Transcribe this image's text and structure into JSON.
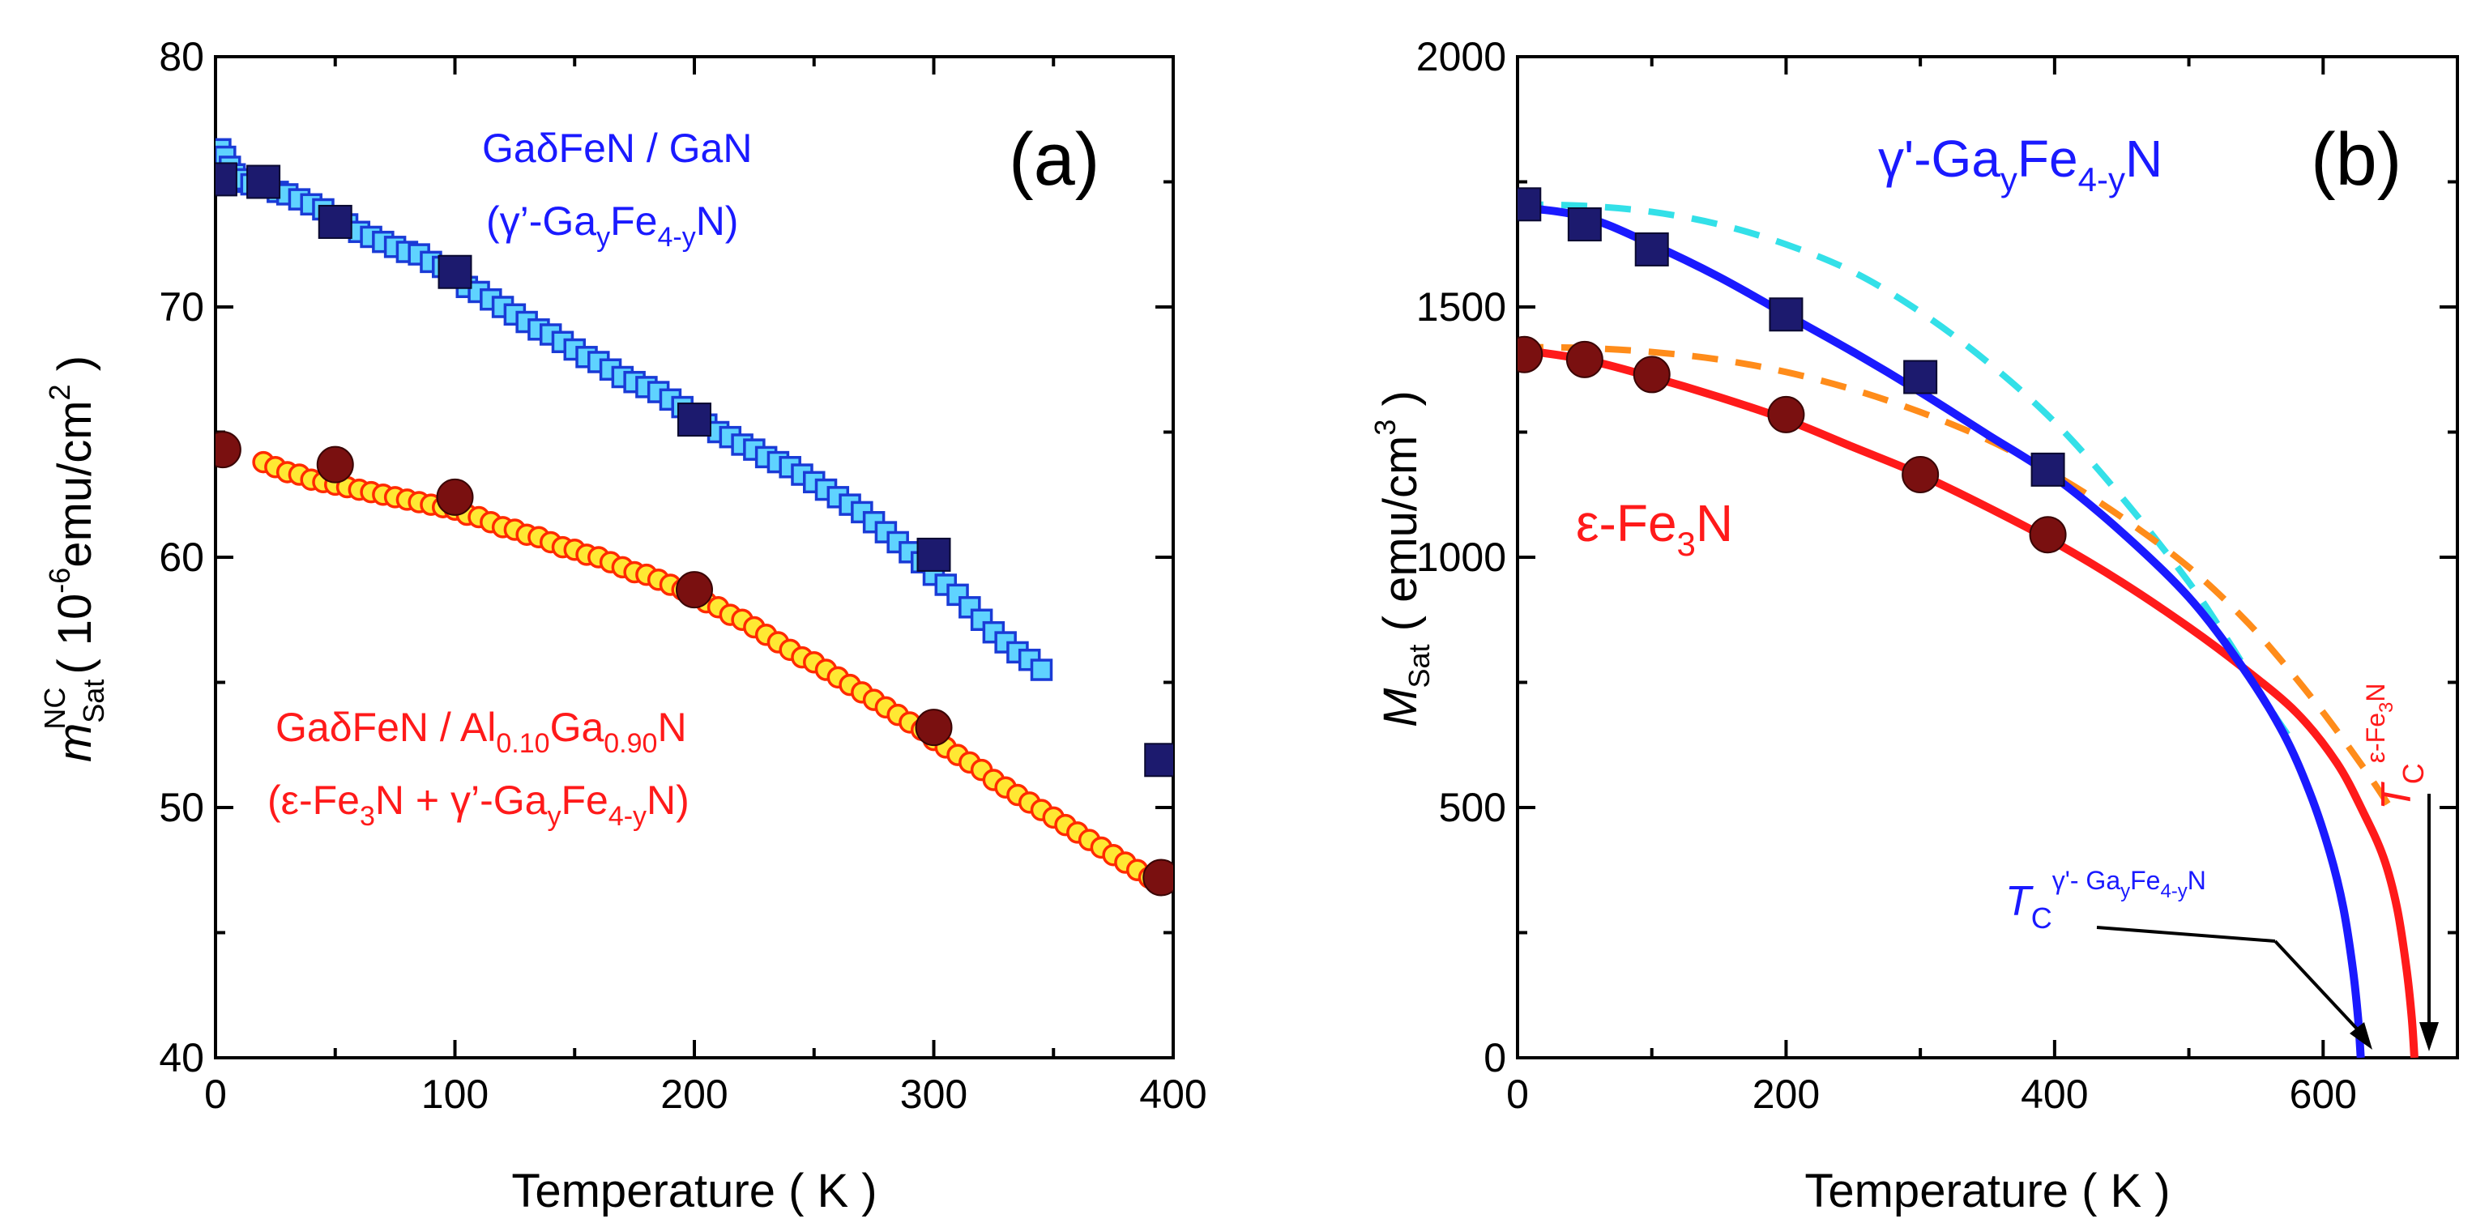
{
  "chart_data": [
    {
      "type": "scatter",
      "panel_label": "(a)",
      "xlabel": "Temperature   ( K )",
      "ylabel_main": "m",
      "ylabel_sup": "NC",
      "ylabel_sub": "Sat",
      "ylabel_units_pre": "( 10",
      "ylabel_units_exp": "-6",
      "ylabel_units_mid": "emu/cm",
      "ylabel_units_exp2": "2",
      "ylabel_units_post": " )",
      "xlim": [
        0,
        400
      ],
      "ylim": [
        40,
        80
      ],
      "xticks": [
        "0",
        "100",
        "200",
        "300",
        "400"
      ],
      "yticks": [
        "40",
        "50",
        "60",
        "70",
        "80"
      ],
      "colors": {
        "blue_fill": "#5fd3ff",
        "blue_edge": "#1a3bd6",
        "navy": "#1c1a6e",
        "yellow_fill": "#ffe833",
        "red_edge": "#ff2a00",
        "maroon": "#7a1010"
      },
      "annotations": {
        "blue_line1": "GaδFeN / GaN",
        "blue_line2_pre": "(γ’-Ga",
        "blue_line2_sub1": "y",
        "blue_line2_mid": "Fe",
        "blue_line2_sub2": "4-y",
        "blue_line2_post": "N)",
        "red_line1_pre": "GaδFeN / Al",
        "red_line1_sub1": "0.10",
        "red_line1_mid": "Ga",
        "red_line1_sub2": "0.90",
        "red_line1_post": "N",
        "red_line2_pre": "(ε-Fe",
        "red_line2_sub1": "3",
        "red_line2_mid": "N + γ’-Ga",
        "red_line2_sub2": "y",
        "red_line2_mid2": "Fe",
        "red_line2_sub3": "4-y",
        "red_line2_post": "N)"
      },
      "series": [
        {
          "marker": "open-square",
          "x": [
            2,
            4,
            6,
            8,
            10,
            12,
            15,
            18,
            22,
            26,
            30,
            35,
            40,
            45,
            50,
            55,
            60,
            65,
            70,
            75,
            80,
            85,
            90,
            95,
            100,
            105,
            110,
            115,
            120,
            125,
            130,
            135,
            140,
            145,
            150,
            155,
            160,
            165,
            170,
            175,
            180,
            185,
            190,
            195,
            200,
            205,
            210,
            215,
            220,
            225,
            230,
            235,
            240,
            245,
            250,
            255,
            260,
            265,
            270,
            275,
            280,
            285,
            290,
            295,
            300,
            305,
            310,
            315,
            320,
            325,
            330,
            335,
            340,
            345
          ],
          "y": [
            76.3,
            76.0,
            75.6,
            75.3,
            75.0,
            75.1,
            74.9,
            75.0,
            74.8,
            74.6,
            74.5,
            74.3,
            74.1,
            73.9,
            73.6,
            73.3,
            73.0,
            72.8,
            72.6,
            72.4,
            72.2,
            72.1,
            71.8,
            71.6,
            71.3,
            70.8,
            70.6,
            70.3,
            70.0,
            69.7,
            69.4,
            69.1,
            68.9,
            68.6,
            68.3,
            68.0,
            67.8,
            67.5,
            67.2,
            67.0,
            66.8,
            66.6,
            66.3,
            66.0,
            65.6,
            65.3,
            65.0,
            64.8,
            64.5,
            64.3,
            64.0,
            63.8,
            63.6,
            63.3,
            63.0,
            62.7,
            62.4,
            62.1,
            61.8,
            61.4,
            61.0,
            60.6,
            60.2,
            59.8,
            59.3,
            58.9,
            58.5,
            58.0,
            57.5,
            57.0,
            56.6,
            56.2,
            55.9,
            55.5
          ]
        },
        {
          "marker": "filled-square",
          "x": [
            2,
            20,
            50,
            100,
            200,
            300,
            395
          ],
          "y": [
            75.1,
            75.0,
            73.4,
            71.4,
            65.5,
            60.1,
            51.9
          ]
        },
        {
          "marker": "open-circle",
          "x": [
            20,
            25,
            30,
            35,
            40,
            45,
            50,
            55,
            60,
            65,
            70,
            75,
            80,
            85,
            90,
            95,
            100,
            105,
            110,
            115,
            120,
            125,
            130,
            135,
            140,
            145,
            150,
            155,
            160,
            165,
            170,
            175,
            180,
            185,
            190,
            195,
            200,
            205,
            210,
            215,
            220,
            225,
            230,
            235,
            240,
            245,
            250,
            255,
            260,
            265,
            270,
            275,
            280,
            285,
            290,
            295,
            300,
            305,
            310,
            315,
            320,
            325,
            330,
            335,
            340,
            345,
            350,
            355,
            360,
            365,
            370,
            375,
            380,
            385,
            390
          ],
          "y": [
            63.8,
            63.6,
            63.4,
            63.3,
            63.1,
            63.0,
            62.9,
            62.8,
            62.7,
            62.6,
            62.5,
            62.4,
            62.3,
            62.2,
            62.1,
            62.0,
            61.9,
            61.7,
            61.6,
            61.4,
            61.2,
            61.1,
            60.9,
            60.8,
            60.6,
            60.4,
            60.3,
            60.1,
            60.0,
            59.8,
            59.6,
            59.4,
            59.3,
            59.1,
            58.9,
            58.7,
            58.5,
            58.2,
            58.0,
            57.7,
            57.5,
            57.2,
            56.9,
            56.6,
            56.3,
            56.0,
            55.8,
            55.5,
            55.2,
            54.9,
            54.6,
            54.3,
            54.0,
            53.7,
            53.4,
            53.1,
            52.7,
            52.4,
            52.1,
            51.8,
            51.5,
            51.1,
            50.8,
            50.5,
            50.2,
            49.9,
            49.6,
            49.3,
            49.0,
            48.7,
            48.4,
            48.1,
            47.8,
            47.5,
            47.2
          ]
        },
        {
          "marker": "filled-circle",
          "x": [
            3,
            50,
            100,
            200,
            300,
            395
          ],
          "y": [
            64.3,
            63.7,
            62.4,
            58.7,
            53.2,
            47.2
          ]
        }
      ]
    },
    {
      "type": "line",
      "panel_label": "(b)",
      "xlabel": "Temperature   ( K )",
      "ylabel_main": "M",
      "ylabel_sub": "Sat",
      "ylabel_units_pre": "  ( emu/cm",
      "ylabel_units_exp": "3",
      "ylabel_units_post": " )",
      "xlim": [
        0,
        700
      ],
      "ylim": [
        0,
        2000
      ],
      "xticks": [
        "0",
        "200",
        "400",
        "600"
      ],
      "yticks": [
        "0",
        "500",
        "1000",
        "1500",
        "2000"
      ],
      "colors": {
        "blue": "#1a1aff",
        "red": "#ff1a1a",
        "cyan": "#33e0e8",
        "orange": "#ff8c1a",
        "navy": "#1c1a6e",
        "maroon": "#7a1010"
      },
      "labels": {
        "gamma_pre": "γ'-Ga",
        "gamma_sub1": "y",
        "gamma_mid": "Fe",
        "gamma_sub2": "4-y",
        "gamma_post": "N",
        "eps_pre": "ε-Fe",
        "eps_sub": "3",
        "eps_post": "N",
        "tc_gamma_T": "T",
        "tc_gamma_C": "C",
        "tc_gamma_sup_pre": "γ'- Ga",
        "tc_gamma_sup_sub1": "y",
        "tc_gamma_sup_mid": "Fe",
        "tc_gamma_sup_sub2": "4-y",
        "tc_gamma_sup_post": "N",
        "tc_eps_T": "T",
        "tc_eps_C": "C",
        "tc_eps_sup_pre": "ε-Fe",
        "tc_eps_sup_sub": "3",
        "tc_eps_sup_post": "N"
      },
      "series": [
        {
          "style": "solid-blue",
          "x": [
            0,
            50,
            100,
            150,
            200,
            250,
            300,
            350,
            400,
            450,
            500,
            540,
            570,
            590,
            605,
            615,
            622,
            626,
            628
          ],
          "y": [
            1700,
            1680,
            1625,
            1560,
            1485,
            1410,
            1330,
            1245,
            1160,
            1050,
            920,
            780,
            650,
            530,
            410,
            300,
            180,
            80,
            0
          ]
        },
        {
          "style": "solid-red",
          "x": [
            0,
            50,
            100,
            150,
            200,
            250,
            300,
            350,
            400,
            450,
            500,
            540,
            580,
            610,
            630,
            645,
            655,
            662,
            666,
            668
          ],
          "y": [
            1415,
            1395,
            1360,
            1320,
            1275,
            1220,
            1165,
            1100,
            1030,
            950,
            860,
            780,
            690,
            590,
            490,
            400,
            300,
            180,
            80,
            0
          ]
        },
        {
          "style": "dashed-cyan",
          "x": [
            0,
            50,
            100,
            150,
            200,
            250,
            300,
            350,
            400,
            450,
            500,
            530,
            560,
            575
          ],
          "y": [
            1705,
            1702,
            1690,
            1665,
            1625,
            1570,
            1490,
            1390,
            1270,
            1120,
            950,
            830,
            700,
            640
          ]
        },
        {
          "style": "dashed-orange",
          "x": [
            0,
            50,
            100,
            150,
            200,
            250,
            300,
            350,
            400,
            450,
            500,
            540,
            570,
            600,
            630,
            650
          ],
          "y": [
            1420,
            1418,
            1410,
            1395,
            1370,
            1335,
            1290,
            1235,
            1165,
            1080,
            980,
            880,
            790,
            690,
            580,
            500
          ]
        },
        {
          "style": "filled-square",
          "x": [
            5,
            50,
            100,
            200,
            300,
            395
          ],
          "y": [
            1705,
            1665,
            1615,
            1485,
            1360,
            1175
          ]
        },
        {
          "style": "filled-circle",
          "x": [
            5,
            50,
            100,
            200,
            300,
            395
          ],
          "y": [
            1405,
            1395,
            1365,
            1285,
            1165,
            1045
          ]
        }
      ]
    }
  ]
}
